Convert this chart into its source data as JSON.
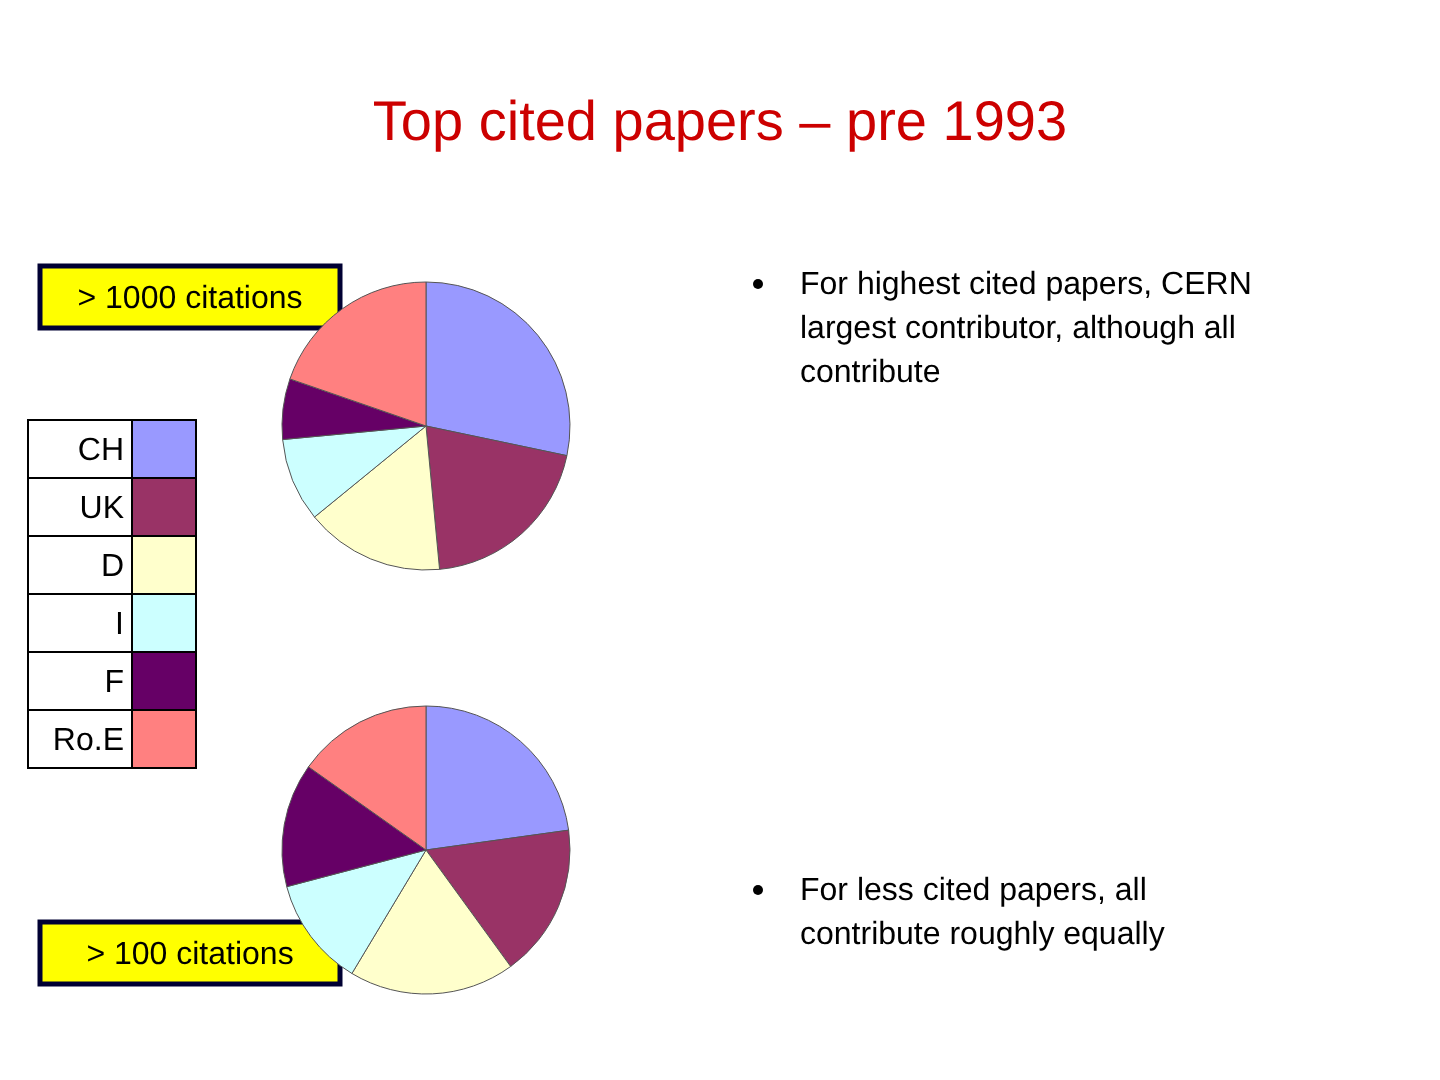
{
  "chart_data": [
    {
      "type": "pie",
      "title": "Top cited papers – pre 1993",
      "subtitle": "> 1000 citations",
      "categories": [
        "CH",
        "UK",
        "D",
        "I",
        "F",
        "Ro.E"
      ],
      "values": [
        28.3,
        20.2,
        15.6,
        9.4,
        6.8,
        19.7
      ],
      "colors": [
        "#9999ff",
        "#993366",
        "#ffffcc",
        "#ccffff",
        "#660066",
        "#ff8080"
      ],
      "legend": "left",
      "annotations": [
        "For highest cited papers, CERN largest contributor, although all contribute"
      ]
    },
    {
      "type": "pie",
      "subtitle": "> 100 citations",
      "categories": [
        null,
        null,
        null,
        null,
        null,
        null
      ],
      "values": [
        22.8,
        17.2,
        18.6,
        12.3,
        13.9,
        15.2
      ],
      "colors": [
        "#9999ff",
        "#993366",
        "#ffffcc",
        "#ccffff",
        "#660066",
        "#ff8080"
      ],
      "annotations": [
        "For less cited papers, all contribute roughly equally"
      ]
    }
  ]
}
